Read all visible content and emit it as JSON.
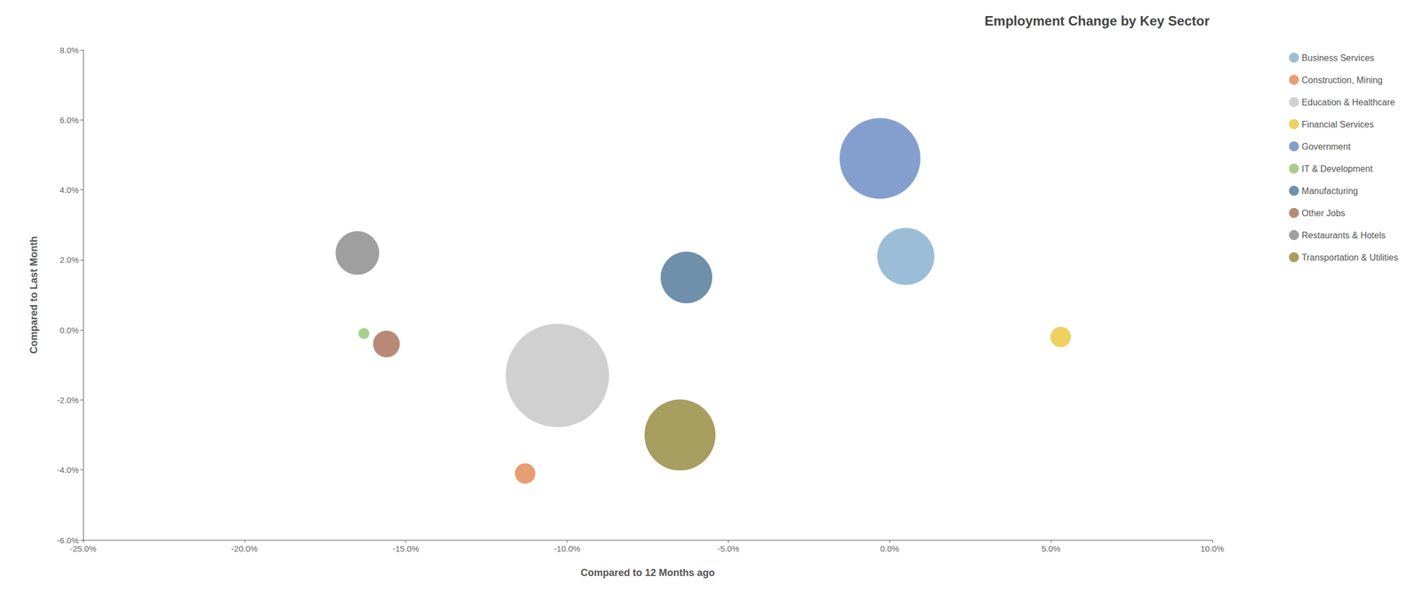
{
  "chart_data": {
    "type": "scatter",
    "title": "Employment Change by Key Sector",
    "xlabel": "Compared to 12 Months ago",
    "ylabel": "Compared to Last Month",
    "xlim": [
      -0.25,
      0.1
    ],
    "ylim": [
      -0.06,
      0.08
    ],
    "xticks": [
      {
        "value": -0.25,
        "label": "-25.0%"
      },
      {
        "value": -0.2,
        "label": "-20.0%"
      },
      {
        "value": -0.15,
        "label": "-15.0%"
      },
      {
        "value": -0.1,
        "label": "-10.0%"
      },
      {
        "value": -0.05,
        "label": "-5.0%"
      },
      {
        "value": 0.0,
        "label": "0.0%"
      },
      {
        "value": 0.05,
        "label": "5.0%"
      },
      {
        "value": 0.1,
        "label": "10.0%"
      }
    ],
    "yticks": [
      {
        "value": -0.06,
        "label": "-6.0%"
      },
      {
        "value": -0.04,
        "label": "-4.0%"
      },
      {
        "value": -0.02,
        "label": "-2.0%"
      },
      {
        "value": 0.0,
        "label": "0.0%"
      },
      {
        "value": 0.02,
        "label": "2.0%"
      },
      {
        "value": 0.04,
        "label": "4.0%"
      },
      {
        "value": 0.06,
        "label": "6.0%"
      },
      {
        "value": 0.08,
        "label": "8.0%"
      }
    ],
    "grid": false,
    "legend": "right",
    "series": [
      {
        "name": "Business Services",
        "color": "#7BA7C9",
        "x": [
          0.005
        ],
        "values": [
          0.021
        ],
        "size": [
          5500
        ]
      },
      {
        "name": "Construction, Mining",
        "color": "#E07D44",
        "x": [
          -0.113
        ],
        "values": [
          -0.041
        ],
        "size": [
          700
        ]
      },
      {
        "name": "Education & Healthcare",
        "color": "#C0C0C0",
        "x": [
          -0.103
        ],
        "values": [
          -0.013
        ],
        "size": [
          18000
        ]
      },
      {
        "name": "Financial Services",
        "color": "#E8C22A",
        "x": [
          0.053
        ],
        "values": [
          -0.002
        ],
        "size": [
          700
        ]
      },
      {
        "name": "Government",
        "color": "#5B7FBE",
        "x": [
          -0.003
        ],
        "values": [
          0.049
        ],
        "size": [
          11000
        ]
      },
      {
        "name": "IT & Development",
        "color": "#8BBD6A",
        "x": [
          -0.163
        ],
        "values": [
          -0.001
        ],
        "size": [
          200
        ]
      },
      {
        "name": "Manufacturing",
        "color": "#3D6B8E",
        "x": [
          -0.063
        ],
        "values": [
          0.015
        ],
        "size": [
          4500
        ]
      },
      {
        "name": "Other Jobs",
        "color": "#A0614A",
        "x": [
          -0.156
        ],
        "values": [
          -0.004
        ],
        "size": [
          1200
        ]
      },
      {
        "name": "Restaurants & Hotels",
        "color": "#7F7F7F",
        "x": [
          -0.165
        ],
        "values": [
          0.022
        ],
        "size": [
          3200
        ]
      },
      {
        "name": "Transportation & Utilities",
        "color": "#8B7D2A",
        "x": [
          -0.065
        ],
        "values": [
          -0.03
        ],
        "size": [
          8500
        ]
      }
    ]
  }
}
